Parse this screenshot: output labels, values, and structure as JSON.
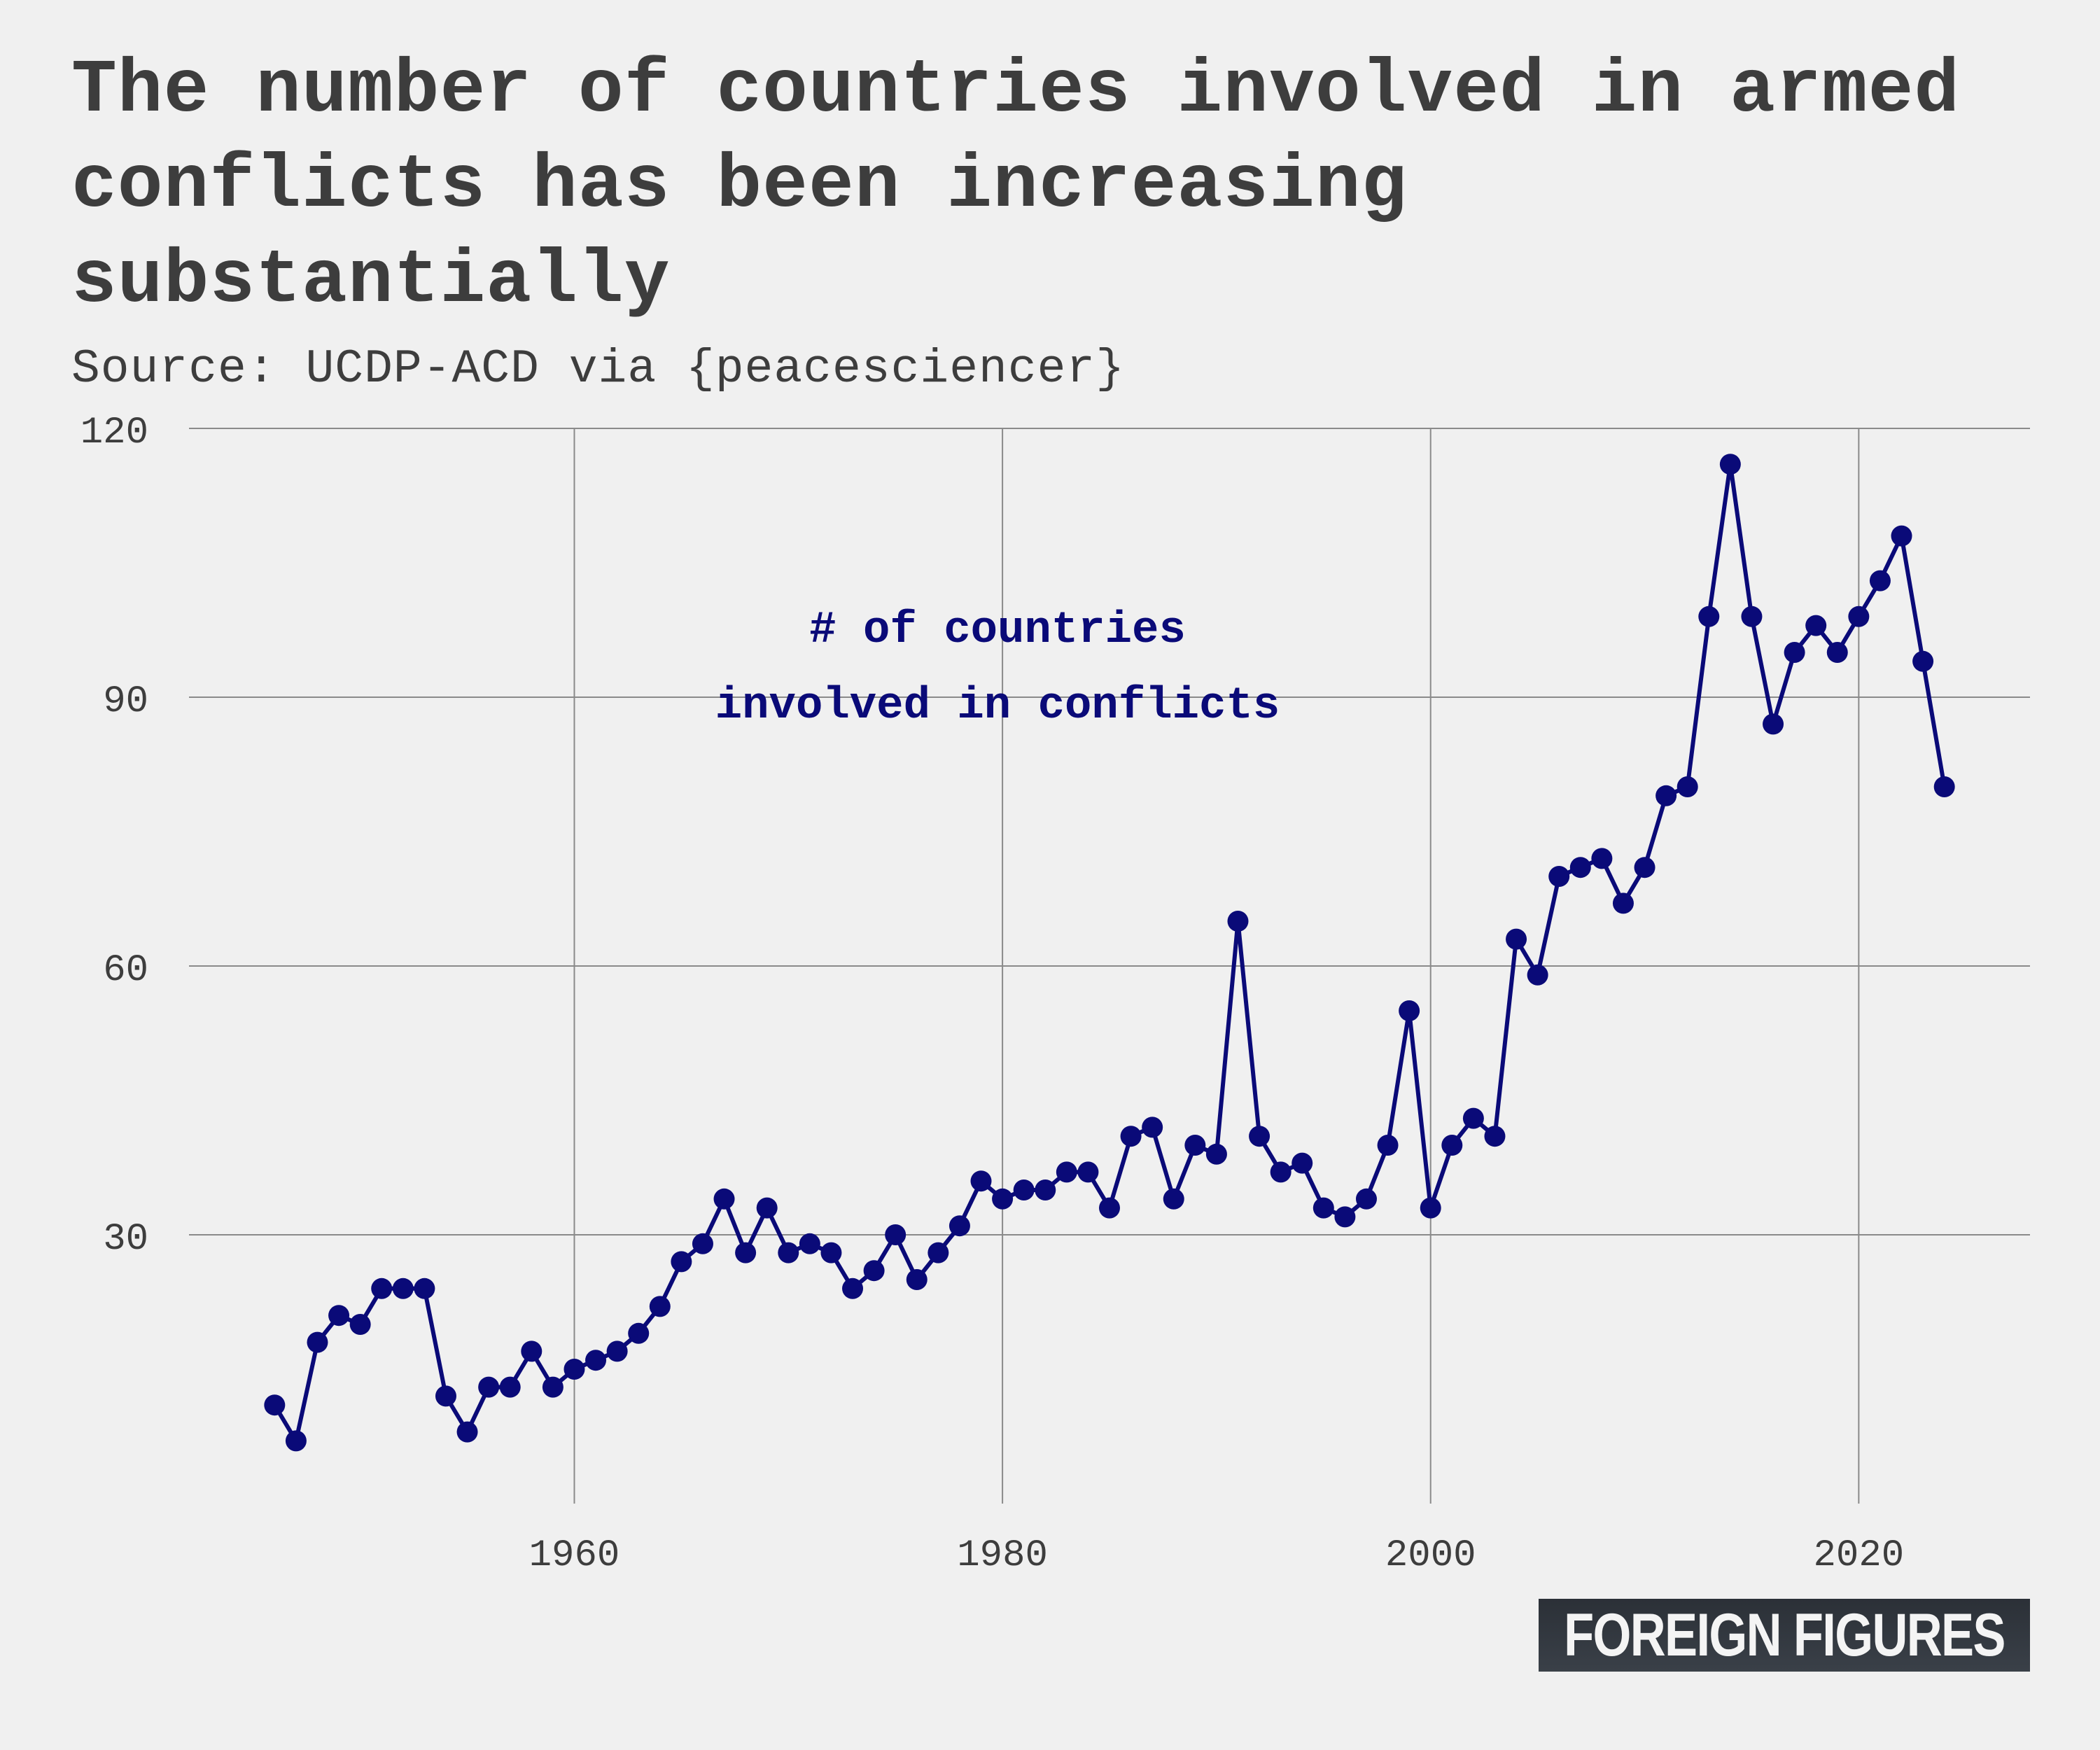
{
  "chart_data": {
    "type": "line",
    "title": "The number of countries involved in armed conflicts has been increasing substantially",
    "subtitle": "Source: UCDP-ACD via {peacesciencer}",
    "annotation": [
      "# of countries",
      "involved in conflicts"
    ],
    "xlabel": "",
    "ylabel": "",
    "xlim": [
      1942,
      2028
    ],
    "ylim": [
      0,
      120
    ],
    "x_ticks": [
      1960,
      1980,
      2000,
      2020
    ],
    "y_ticks": [
      30,
      60,
      90,
      120
    ],
    "grid": true,
    "line_color": "#0a0a78",
    "x": [
      1946,
      1947,
      1948,
      1949,
      1950,
      1951,
      1952,
      1953,
      1954,
      1955,
      1956,
      1957,
      1958,
      1959,
      1960,
      1961,
      1962,
      1963,
      1964,
      1965,
      1966,
      1967,
      1968,
      1969,
      1970,
      1971,
      1972,
      1973,
      1974,
      1975,
      1976,
      1977,
      1978,
      1979,
      1980,
      1981,
      1982,
      1983,
      1984,
      1985,
      1986,
      1987,
      1988,
      1989,
      1990,
      1991,
      1992,
      1993,
      1994,
      1995,
      1996,
      1997,
      1998,
      1999,
      2000,
      2001,
      2002,
      2003,
      2004,
      2005,
      2006,
      2007,
      2008,
      2009,
      2010,
      2011,
      2012,
      2013,
      2014,
      2015,
      2016,
      2017,
      2018,
      2019,
      2020,
      2021,
      2022,
      2023,
      2024
    ],
    "values": [
      11,
      7,
      18,
      21,
      20,
      24,
      24,
      24,
      12,
      8,
      13,
      13,
      17,
      13,
      15,
      16,
      17,
      19,
      22,
      27,
      29,
      34,
      28,
      33,
      28,
      29,
      28,
      24,
      26,
      30,
      25,
      28,
      31,
      36,
      34,
      35,
      35,
      37,
      37,
      33,
      41,
      42,
      34,
      40,
      39,
      65,
      41,
      37,
      38,
      33,
      32,
      34,
      40,
      55,
      33,
      40,
      43,
      41,
      63,
      59,
      70,
      71,
      72,
      67,
      71,
      79,
      80,
      99,
      116,
      99,
      87,
      95,
      98,
      95,
      99,
      103,
      108,
      94,
      80
    ]
  },
  "brand": "FOREIGN FIGURES"
}
